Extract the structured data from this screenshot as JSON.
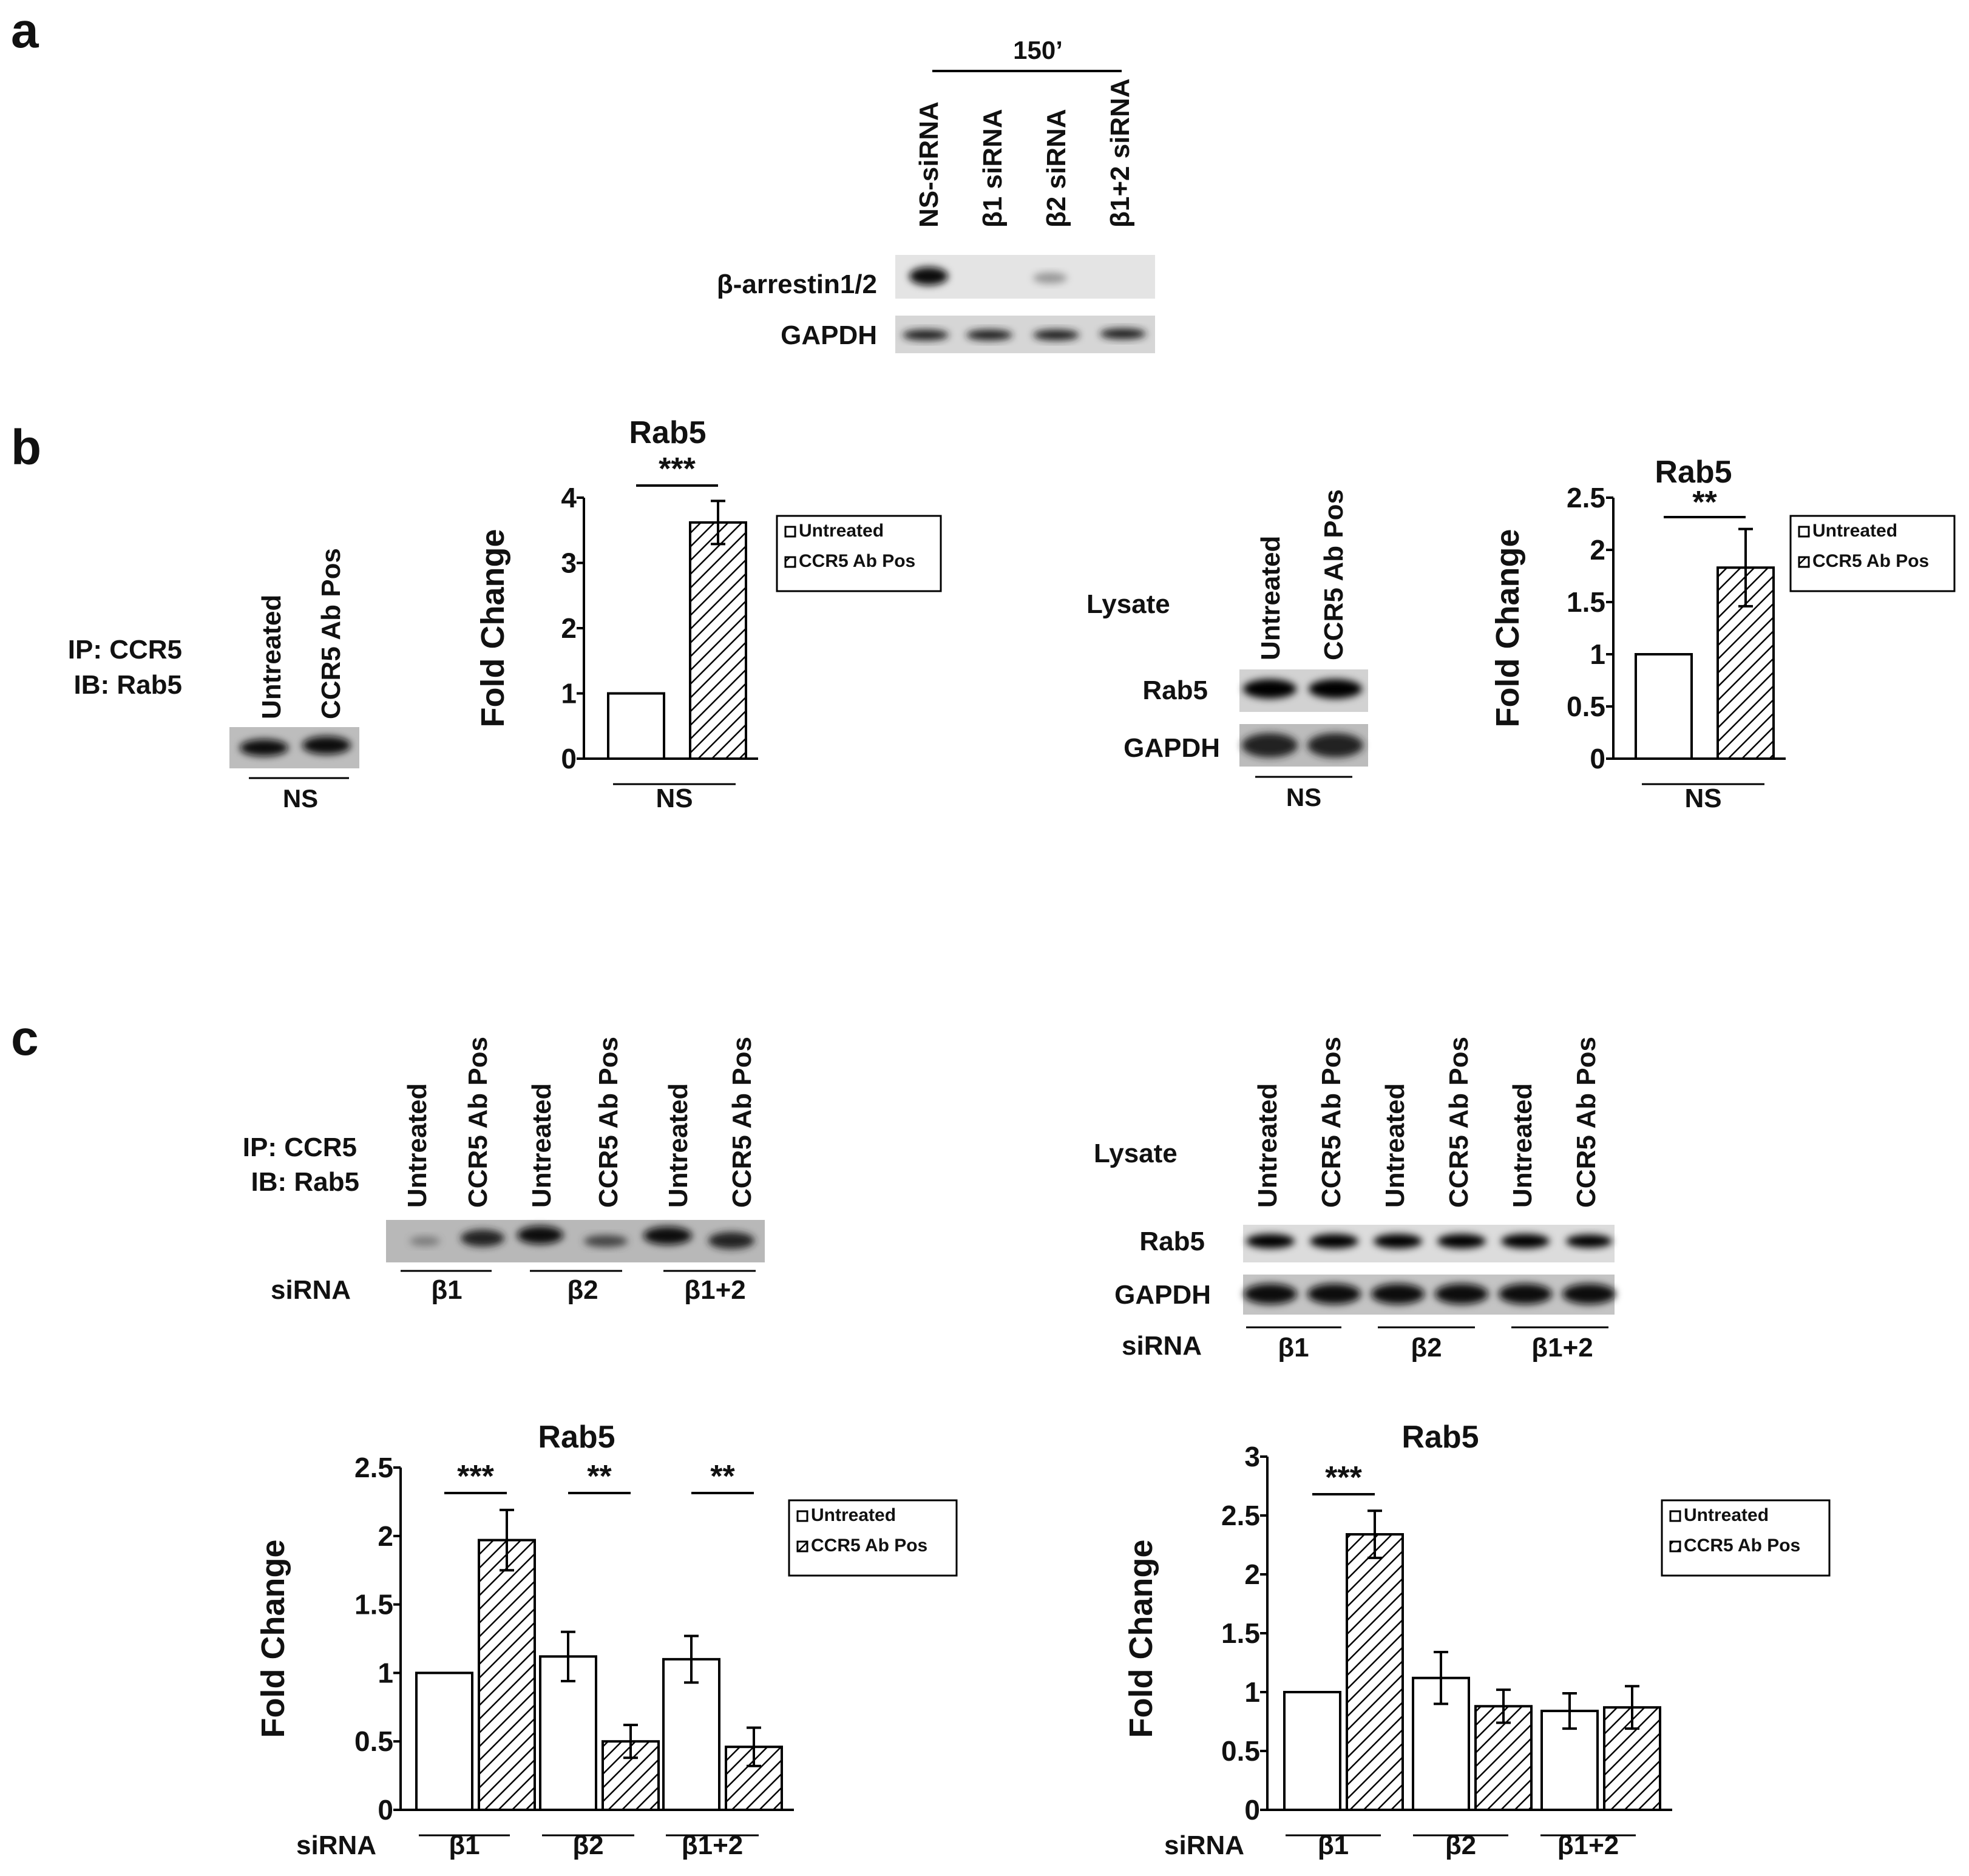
{
  "panels": {
    "a": "a",
    "b": "b",
    "c": "c"
  },
  "panel_a": {
    "time_label": "150’",
    "lanes": [
      "NS-siRNA",
      "β1 siRNA",
      "β2 siRNA",
      "β1+2 siRNA"
    ],
    "row_labels": [
      "β-arrestin1/2",
      "GAPDH"
    ]
  },
  "panel_b": {
    "ip_label_1": "IP: CCR5",
    "ip_label_2": "IB: Rab5",
    "lanes": [
      "Untreated",
      "CCR5 Ab Pos"
    ],
    "group": "NS",
    "lysate_label": "Lysate",
    "lysate_rows": [
      "Rab5",
      "GAPDH"
    ]
  },
  "panel_c": {
    "ip_label_1": "IP: CCR5",
    "ip_label_2": "IB: Rab5",
    "lane_labels": [
      "Untreated",
      "CCR5 Ab Pos",
      "Untreated",
      "CCR5 Ab Pos",
      "Untreated",
      "CCR5 Ab Pos"
    ],
    "sirna_label": "siRNA",
    "groups": [
      "β1",
      "β2",
      "β1+2"
    ],
    "lysate_label": "Lysate",
    "lysate_rows": [
      "Rab5",
      "GAPDH"
    ]
  },
  "colors": {
    "untreated_fill": "#ffffff",
    "hatch": "#000000",
    "axis": "#000000"
  },
  "chart_data": [
    {
      "id": "b1",
      "type": "bar",
      "title": "Rab5",
      "ylabel": "Fold Change",
      "xlabel": "NS",
      "ylim": [
        0,
        4
      ],
      "yticks": [
        "0",
        "1",
        "2",
        "3",
        "4"
      ],
      "ytick_values": [
        0,
        1,
        2,
        3,
        4
      ],
      "categories": [
        "NS"
      ],
      "series": [
        {
          "name": "Untreated",
          "values": [
            1.0
          ],
          "errors": [
            0
          ]
        },
        {
          "name": "CCR5 Ab Pos",
          "values": [
            3.62
          ],
          "errors": [
            0.33
          ]
        }
      ],
      "significance": [
        "***"
      ],
      "legend": "right"
    },
    {
      "id": "b2",
      "type": "bar",
      "title": "Rab5",
      "ylabel": "Fold Change",
      "xlabel": "NS",
      "ylim": [
        0,
        2.5
      ],
      "yticks": [
        "0",
        "0.5",
        "1",
        "1.5",
        "2",
        "2.5"
      ],
      "ytick_values": [
        0,
        0.5,
        1,
        1.5,
        2,
        2.5
      ],
      "categories": [
        "NS"
      ],
      "series": [
        {
          "name": "Untreated",
          "values": [
            1.0
          ],
          "errors": [
            0
          ]
        },
        {
          "name": "CCR5 Ab Pos",
          "values": [
            1.83
          ],
          "errors": [
            0.37
          ]
        }
      ],
      "significance": [
        "**"
      ],
      "legend": "right"
    },
    {
      "id": "c1",
      "type": "bar",
      "title": "Rab5",
      "ylabel": "Fold Change",
      "xlabel": "siRNA",
      "ylim": [
        0,
        2.5
      ],
      "yticks": [
        "0",
        "0.5",
        "1",
        "1.5",
        "2",
        "2.5"
      ],
      "ytick_values": [
        0,
        0.5,
        1,
        1.5,
        2,
        2.5
      ],
      "categories": [
        "β1",
        "β2",
        "β1+2"
      ],
      "series": [
        {
          "name": "Untreated",
          "values": [
            1.0,
            1.12,
            1.1
          ],
          "errors": [
            0,
            0.18,
            0.17
          ]
        },
        {
          "name": "CCR5 Ab Pos",
          "values": [
            1.97,
            0.5,
            0.46
          ],
          "errors": [
            0.22,
            0.12,
            0.14
          ]
        }
      ],
      "significance": [
        "***",
        "**",
        "**"
      ],
      "legend": "right"
    },
    {
      "id": "c2",
      "type": "bar",
      "title": "Rab5",
      "ylabel": "Fold Change",
      "xlabel": "siRNA",
      "ylim": [
        0,
        3
      ],
      "yticks": [
        "0",
        "0.5",
        "1",
        "1.5",
        "2",
        "2.5",
        "3"
      ],
      "ytick_values": [
        0,
        0.5,
        1,
        1.5,
        2,
        2.5,
        3
      ],
      "categories": [
        "β1",
        "β2",
        "β1+2"
      ],
      "series": [
        {
          "name": "Untreated",
          "values": [
            1.0,
            1.12,
            0.84
          ],
          "errors": [
            0,
            0.22,
            0.15
          ]
        },
        {
          "name": "CCR5 Ab Pos",
          "values": [
            2.34,
            0.88,
            0.87
          ],
          "errors": [
            0.2,
            0.14,
            0.18
          ]
        }
      ],
      "significance": [
        "***",
        "",
        ""
      ],
      "legend": "right"
    }
  ]
}
